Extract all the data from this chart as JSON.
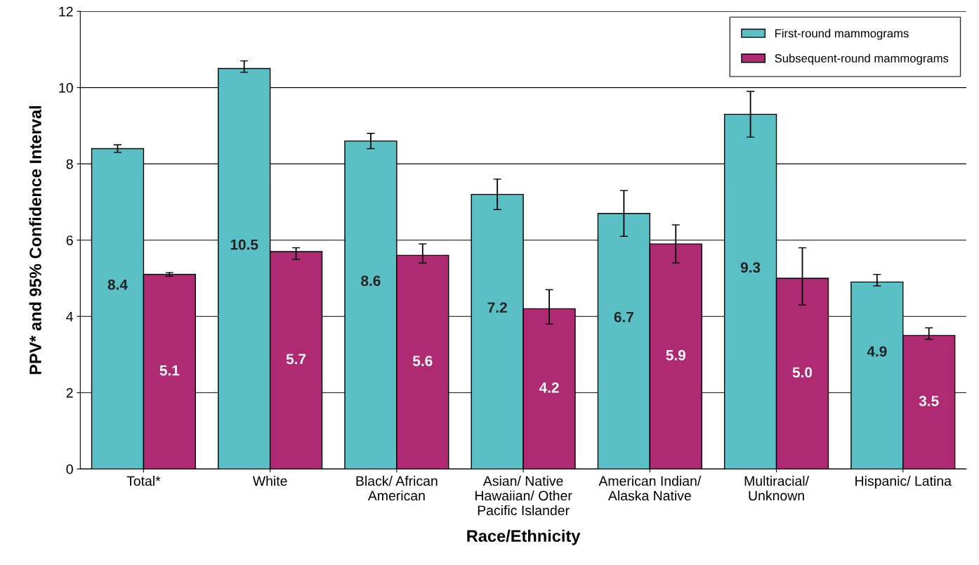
{
  "chart_data": {
    "type": "bar",
    "xlabel": "Race/Ethnicity",
    "ylabel": "PPV* and 95% Confidence Interval",
    "categories": [
      "Total*",
      "White",
      "Black/ African\nAmerican",
      "Asian/ Native\nHawaiian/ Other\nPacific Islander",
      "American Indian/\nAlaska Native",
      "Multiracial/\nUnknown",
      "Hispanic/ Latina"
    ],
    "series": [
      {
        "name": "First-round mammograms",
        "color": "#5bc0c5",
        "values": [
          8.4,
          10.5,
          8.6,
          7.2,
          6.7,
          9.3,
          4.9
        ],
        "value_labels": [
          "8.4",
          "10.5",
          "8.6",
          "7.2",
          "6.7",
          "9.3",
          "4.9"
        ],
        "errors": [
          [
            8.3,
            8.5
          ],
          [
            10.4,
            10.7
          ],
          [
            8.4,
            8.8
          ],
          [
            6.8,
            7.6
          ],
          [
            6.1,
            7.3
          ],
          [
            8.7,
            9.9
          ],
          [
            4.8,
            5.1
          ]
        ]
      },
      {
        "name": "Subsequent-round mammograms",
        "color": "#ae2a72",
        "values": [
          5.1,
          5.7,
          5.6,
          4.2,
          5.9,
          5.0,
          3.5
        ],
        "value_labels": [
          "5.1",
          "5.7",
          "5.6",
          "4.2",
          "5.9",
          "5.0",
          "3.5"
        ],
        "errors": [
          [
            5.05,
            5.15
          ],
          [
            5.5,
            5.8
          ],
          [
            5.4,
            5.9
          ],
          [
            3.8,
            4.7
          ],
          [
            5.4,
            6.4
          ],
          [
            4.3,
            5.8
          ],
          [
            3.4,
            3.7
          ]
        ]
      }
    ],
    "ylim": [
      0,
      12
    ],
    "yticks": [
      0,
      2,
      4,
      6,
      8,
      10,
      12
    ],
    "grid": "y",
    "legend": "top right"
  }
}
